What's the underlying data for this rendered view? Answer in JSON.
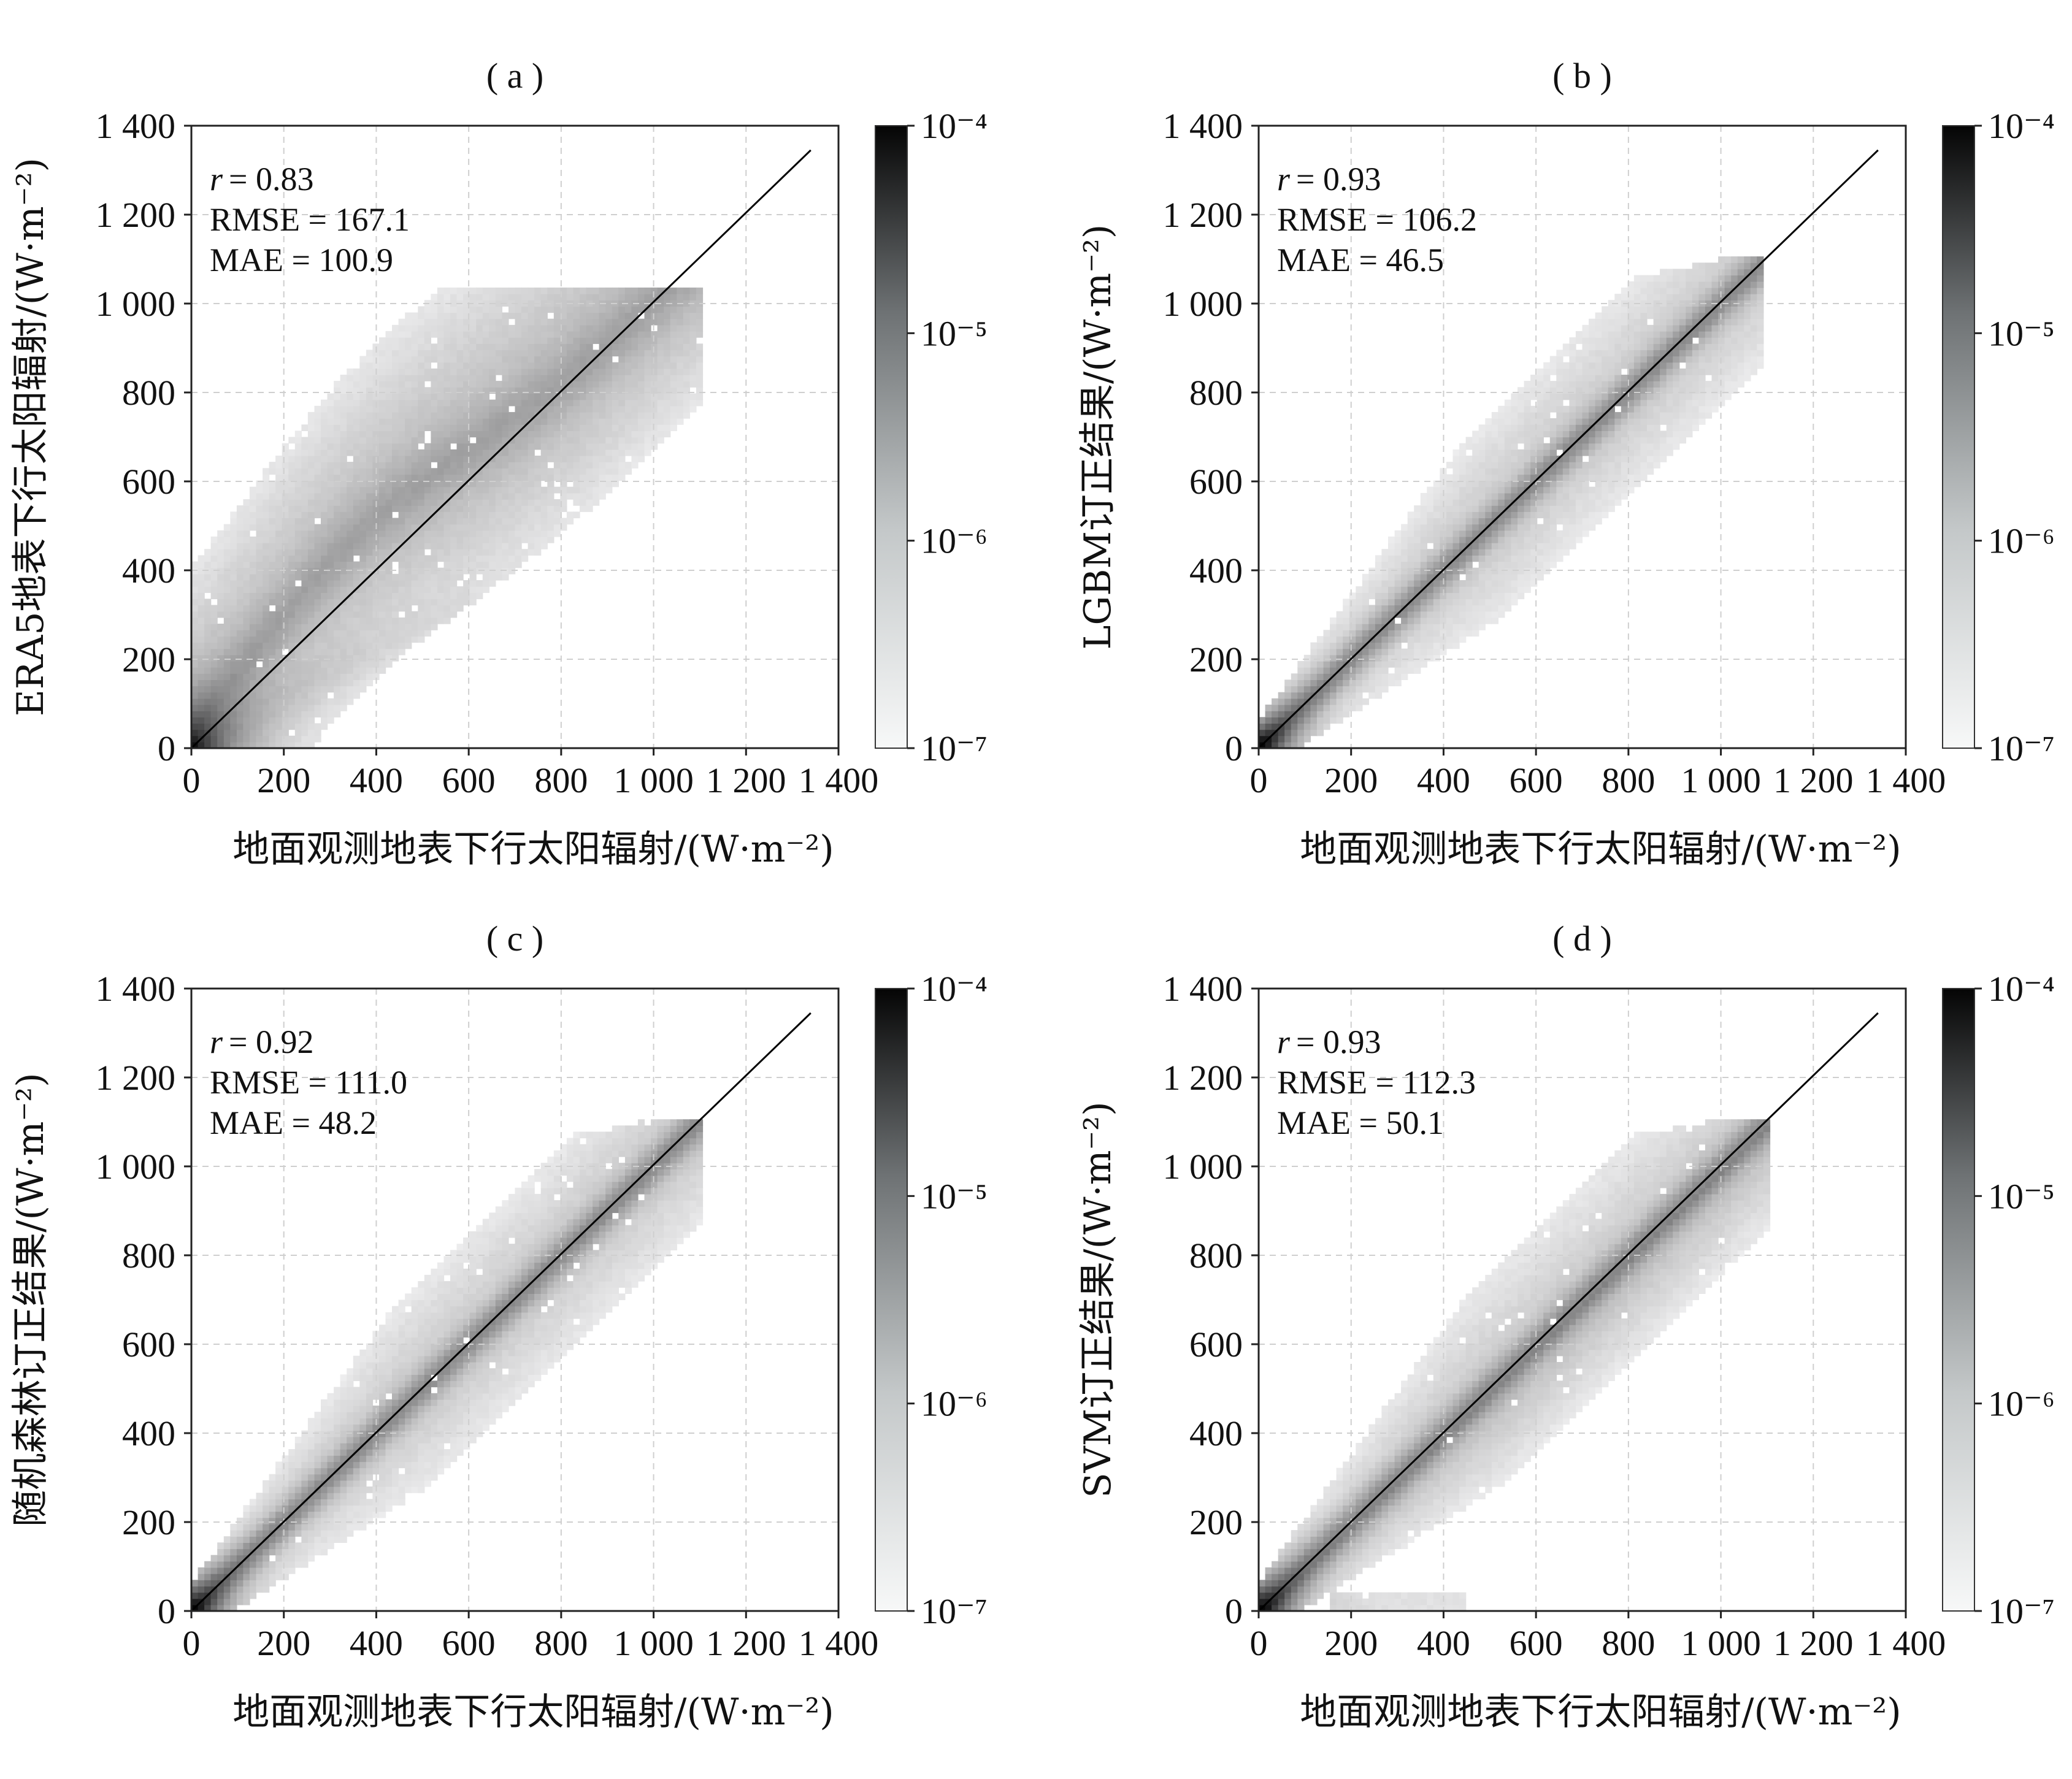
{
  "chart_data": [
    {
      "type": "heatmap",
      "panel_label": "( a )",
      "xlabel": "地面观测地表下行太阳辐射/(W·m⁻²)",
      "ylabel": "ERA5地表下行太阳辐射/(W·m⁻²)",
      "xlim": [
        0,
        1400
      ],
      "ylim": [
        0,
        1400
      ],
      "xticks": [
        "0",
        "200",
        "400",
        "600",
        "800",
        "1 000",
        "1 200",
        "1 400"
      ],
      "yticks": [
        "0",
        "200",
        "400",
        "600",
        "800",
        "1 000",
        "1 200",
        "1 400"
      ],
      "grid": true,
      "reference_line": {
        "from": [
          0,
          0
        ],
        "to": [
          1340,
          1345
        ]
      },
      "stats": {
        "r_symbol": "r",
        "r": "= 0.83",
        "rmse": "RMSE = 167.1",
        "mae": "MAE = 100.9"
      },
      "stats_position": "top-left",
      "colorbar": {
        "scale": "log",
        "range": [
          1e-07,
          0.0001
        ],
        "ticks": [
          "10⁻⁴",
          "10⁻⁵",
          "10⁻⁶",
          "10⁻⁷"
        ]
      },
      "density": {
        "pattern": "wide",
        "spread_above": 330,
        "spread_below": 310,
        "x_max": 1100,
        "peak_at_origin": true
      }
    },
    {
      "type": "heatmap",
      "panel_label": "( b )",
      "xlabel": "地面观测地表下行太阳辐射/(W·m⁻²)",
      "ylabel": "LGBM订正结果/(W·m⁻²)",
      "xlim": [
        0,
        1400
      ],
      "ylim": [
        0,
        1400
      ],
      "xticks": [
        "0",
        "200",
        "400",
        "600",
        "800",
        "1 000",
        "1 200",
        "1 400"
      ],
      "yticks": [
        "0",
        "200",
        "400",
        "600",
        "800",
        "1 000",
        "1 200",
        "1 400"
      ],
      "grid": true,
      "reference_line": {
        "from": [
          0,
          0
        ],
        "to": [
          1340,
          1345
        ]
      },
      "stats": {
        "r_symbol": "r",
        "r": "= 0.93",
        "rmse": "RMSE = 106.2",
        "mae": "MAE = 46.5"
      },
      "stats_position": "top-left",
      "colorbar": {
        "scale": "log",
        "range": [
          1e-07,
          0.0001
        ],
        "ticks": [
          "10⁻⁴",
          "10⁻⁵",
          "10⁻⁶",
          "10⁻⁷"
        ]
      },
      "density": {
        "pattern": "narrow",
        "spread_above": 250,
        "spread_below": 230,
        "x_max": 1090,
        "peak_at_origin": true
      }
    },
    {
      "type": "heatmap",
      "panel_label": "( c )",
      "xlabel": "地面观测地表下行太阳辐射/(W·m⁻²)",
      "ylabel": "随机森林订正结果/(W·m⁻²)",
      "xlim": [
        0,
        1400
      ],
      "ylim": [
        0,
        1400
      ],
      "xticks": [
        "0",
        "200",
        "400",
        "600",
        "800",
        "1 000",
        "1 200",
        "1 400"
      ],
      "yticks": [
        "0",
        "200",
        "400",
        "600",
        "800",
        "1 000",
        "1 200",
        "1 400"
      ],
      "grid": true,
      "reference_line": {
        "from": [
          0,
          0
        ],
        "to": [
          1340,
          1345
        ]
      },
      "stats": {
        "r_symbol": "r",
        "r": "= 0.92",
        "rmse": "RMSE = 111.0",
        "mae": "MAE = 48.2"
      },
      "stats_position": "top-left",
      "colorbar": {
        "scale": "log",
        "range": [
          1e-07,
          0.0001
        ],
        "ticks": [
          "10⁻⁴",
          "10⁻⁵",
          "10⁻⁶",
          "10⁻⁷"
        ]
      },
      "density": {
        "pattern": "narrow",
        "spread_above": 250,
        "spread_below": 235,
        "x_max": 1100,
        "peak_at_origin": true
      }
    },
    {
      "type": "heatmap",
      "panel_label": "( d )",
      "xlabel": "地面观测地表下行太阳辐射/(W·m⁻²)",
      "ylabel": "SVM订正结果/(W·m⁻²)",
      "xlim": [
        0,
        1400
      ],
      "ylim": [
        0,
        1400
      ],
      "xticks": [
        "0",
        "200",
        "400",
        "600",
        "800",
        "1 000",
        "1 200",
        "1 400"
      ],
      "yticks": [
        "0",
        "200",
        "400",
        "600",
        "800",
        "1 000",
        "1 200",
        "1 400"
      ],
      "grid": true,
      "reference_line": {
        "from": [
          0,
          0
        ],
        "to": [
          1340,
          1345
        ]
      },
      "stats": {
        "r_symbol": "r",
        "r": "= 0.93",
        "rmse": "RMSE = 112.3",
        "mae": "MAE = 50.1"
      },
      "stats_position": "top-left",
      "colorbar": {
        "scale": "log",
        "range": [
          1e-07,
          0.0001
        ],
        "ticks": [
          "10⁻⁴",
          "10⁻⁵",
          "10⁻⁶",
          "10⁻⁷"
        ]
      },
      "density": {
        "pattern": "svm",
        "spread_above": 260,
        "spread_below": 240,
        "x_max": 1100,
        "peak_at_origin": true,
        "bottom_band": [
          150,
          450
        ]
      }
    }
  ]
}
